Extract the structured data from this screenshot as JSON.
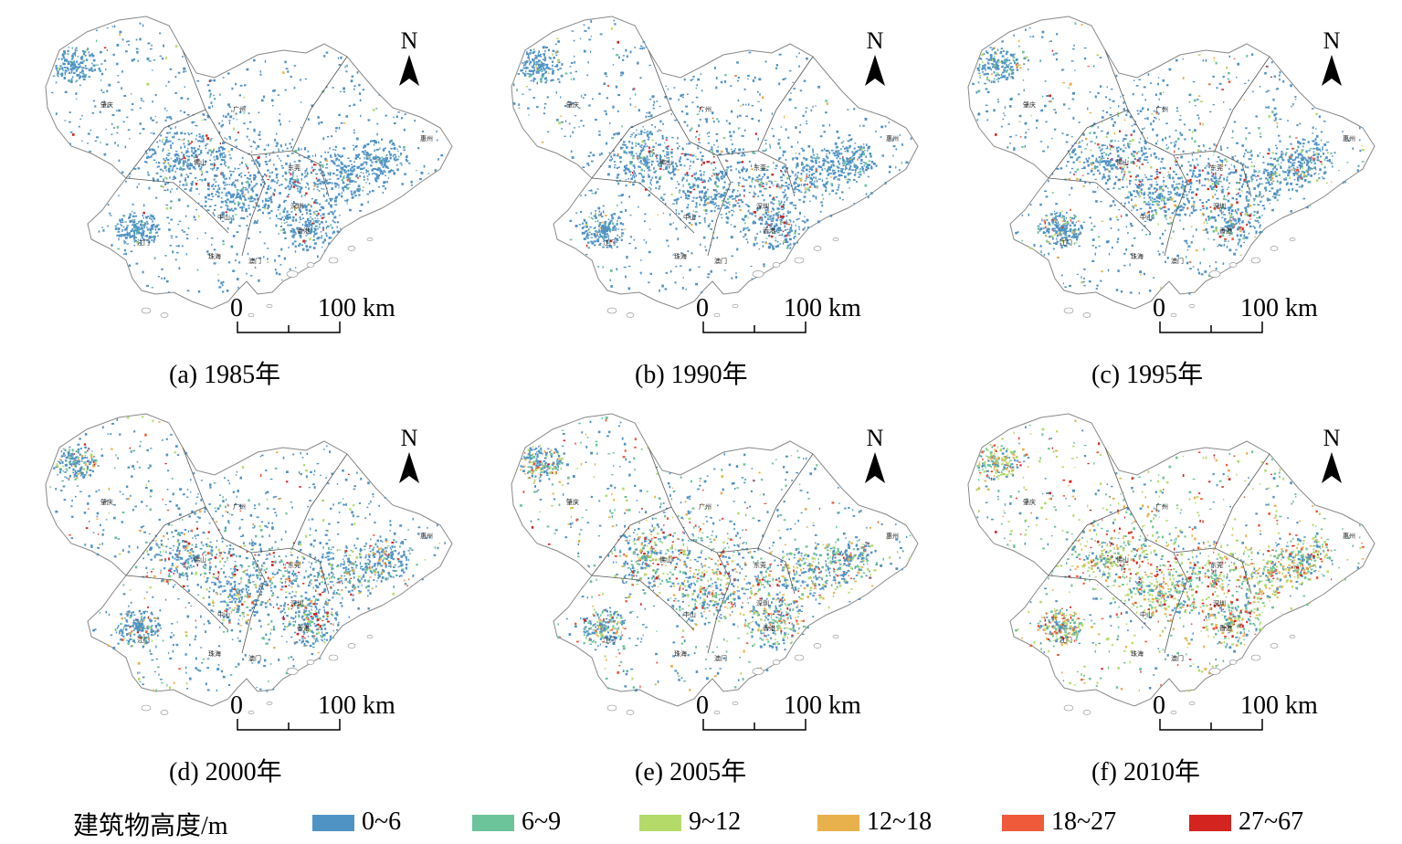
{
  "panels": [
    {
      "caption": "(a) 1985年",
      "mix": [
        0.92,
        0.04,
        0.02,
        0.01,
        0.006,
        0.004
      ]
    },
    {
      "caption": "(b) 1990年",
      "mix": [
        0.9,
        0.05,
        0.02,
        0.015,
        0.009,
        0.006
      ]
    },
    {
      "caption": "(c) 1995年",
      "mix": [
        0.8,
        0.08,
        0.05,
        0.04,
        0.02,
        0.01
      ]
    },
    {
      "caption": "(d) 2000年",
      "mix": [
        0.72,
        0.1,
        0.07,
        0.06,
        0.03,
        0.02
      ]
    },
    {
      "caption": "(e) 2005年",
      "mix": [
        0.5,
        0.2,
        0.12,
        0.1,
        0.05,
        0.03
      ]
    },
    {
      "caption": "(f) 2010年",
      "mix": [
        0.25,
        0.25,
        0.22,
        0.15,
        0.08,
        0.05
      ]
    }
  ],
  "north_label": "N",
  "scale_bar": {
    "start_label": "0",
    "end_label": "100 km"
  },
  "cities": [
    "肇庆",
    "广州",
    "惠州",
    "佛山",
    "东莞",
    "深圳",
    "中山",
    "香港",
    "江门",
    "珠海",
    "澳门"
  ],
  "legend": {
    "title": "建筑物高度/m",
    "items": [
      {
        "label": "0~6",
        "color": "#4f93c5"
      },
      {
        "label": "6~9",
        "color": "#6cc49a"
      },
      {
        "label": "9~12",
        "color": "#b4db6a"
      },
      {
        "label": "12~18",
        "color": "#e9b14c"
      },
      {
        "label": "18~27",
        "color": "#ef5a3a"
      },
      {
        "label": "27~67",
        "color": "#d3241f"
      }
    ]
  }
}
